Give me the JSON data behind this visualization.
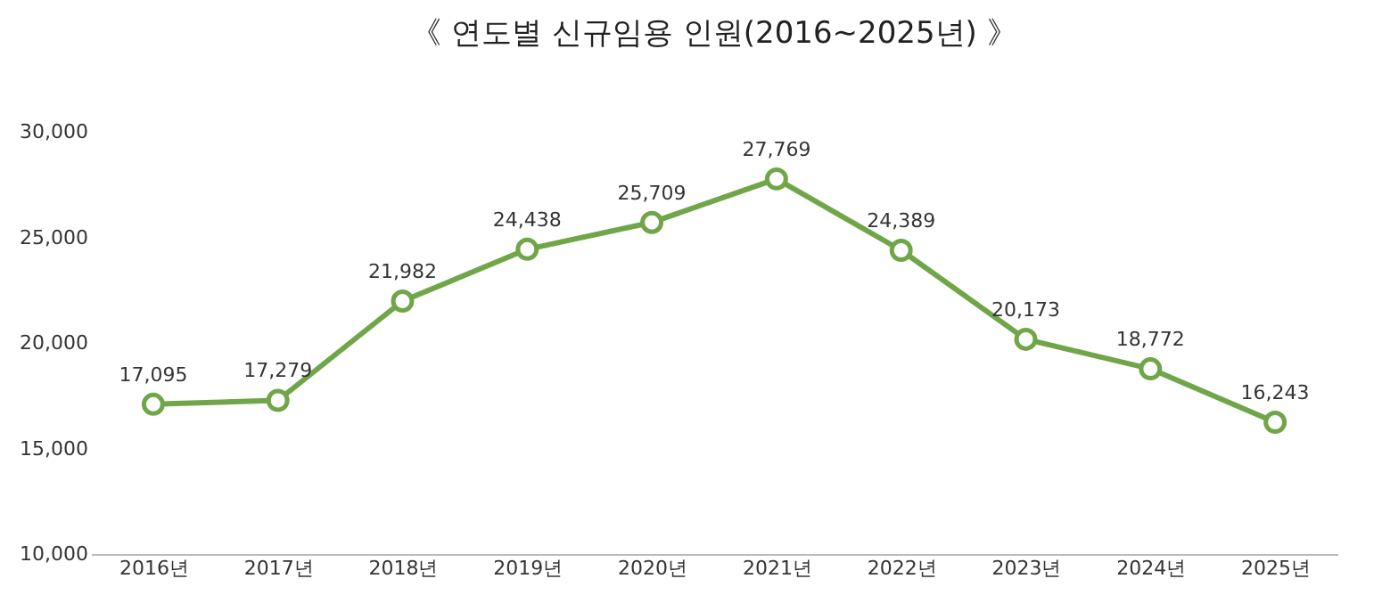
{
  "chart_data": {
    "type": "line",
    "title": "《 연도별 신규임용 인원(2016~2025년) 》",
    "categories": [
      "2016년",
      "2017년",
      "2018년",
      "2019년",
      "2020년",
      "2021년",
      "2022년",
      "2023년",
      "2024년",
      "2025년"
    ],
    "series": [
      {
        "color": "#70a548",
        "values": [
          17095,
          17279,
          21982,
          24438,
          25709,
          27769,
          24389,
          20173,
          18772,
          16243
        ],
        "value_labels": [
          "17,095",
          "17,279",
          "21,982",
          "24,438",
          "25,709",
          "27,769",
          "24,389",
          "20,173",
          "18,772",
          "16,243"
        ]
      }
    ],
    "ylim": [
      10000,
      30000
    ],
    "yticks": [
      {
        "value": 10000,
        "label": "10,000"
      },
      {
        "value": 15000,
        "label": "15,000"
      },
      {
        "value": 20000,
        "label": "20,000"
      },
      {
        "value": 25000,
        "label": "25,000"
      },
      {
        "value": 30000,
        "label": "30,000"
      }
    ],
    "marker": "circle",
    "grid": false,
    "line_style": "solid"
  }
}
